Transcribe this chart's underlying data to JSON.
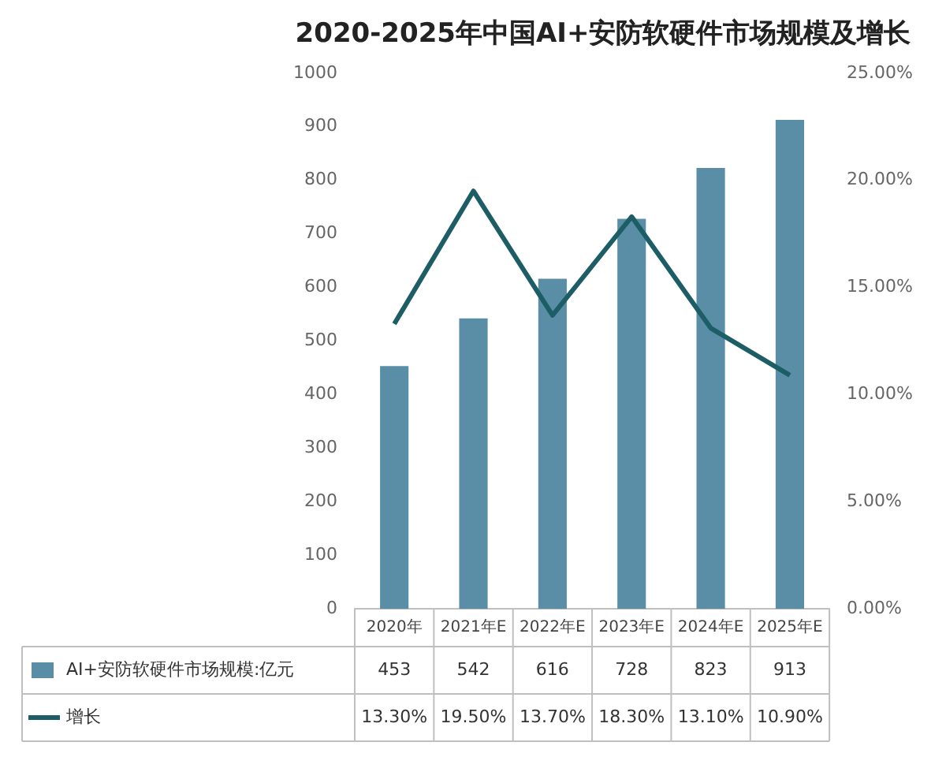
{
  "chart_data": {
    "type": "bar",
    "title": "2020-2025年中国AI+安防软硬件市场规模及增长",
    "categories": [
      "2020年",
      "2021年E",
      "2022年E",
      "2023年E",
      "2024年E",
      "2025年E"
    ],
    "series": [
      {
        "name": "AI+安防软硬件市场规模:亿元",
        "color": "#5a8ea6",
        "values": [
          453,
          542,
          616,
          728,
          823,
          913
        ],
        "value_labels": [
          "453",
          "542",
          "616",
          "728",
          "823",
          "913"
        ]
      },
      {
        "name": "增长",
        "type": "line",
        "axis": "y2",
        "color": "#1d5e66",
        "values": [
          13.3,
          19.5,
          13.7,
          18.3,
          13.1,
          10.9
        ],
        "value_labels": [
          "13.30%",
          "19.50%",
          "13.70%",
          "18.30%",
          "13.10%",
          "10.90%"
        ]
      }
    ],
    "ylim": [
      0,
      1000
    ],
    "yticks": [
      0,
      100,
      200,
      300,
      400,
      500,
      600,
      700,
      800,
      900,
      1000
    ],
    "y2lim": [
      0,
      25
    ],
    "y2ticks": [
      {
        "value": 0,
        "label": "0.00%"
      },
      {
        "value": 5,
        "label": "5.00%"
      },
      {
        "value": 10,
        "label": "10.00%"
      },
      {
        "value": 15,
        "label": "15.00%"
      },
      {
        "value": 20,
        "label": "20.00%"
      },
      {
        "value": 25,
        "label": "25.00%"
      }
    ],
    "grid": false,
    "legend": "bottom",
    "marker": "none",
    "line_style": "solid"
  }
}
